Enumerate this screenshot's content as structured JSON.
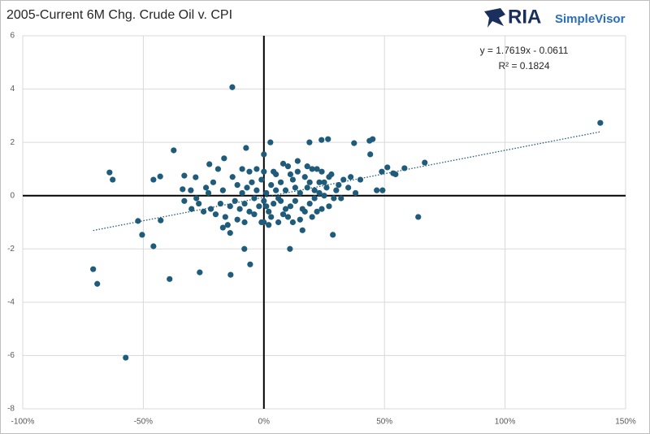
{
  "logo": {
    "brand": "RIA",
    "product": "SimpleVisor"
  },
  "chart_data": {
    "type": "scatter",
    "title": "2005-Current 6M Chg. Crude Oil v. CPI",
    "annotations": [
      "y = 1.7619x - 0.0611",
      "R² = 0.1824"
    ],
    "trendline": {
      "slope": 1.7619,
      "intercept": -0.0611,
      "style": "dotted"
    },
    "color": "#1f5b7a",
    "grid": true,
    "xlim": [
      -100,
      150
    ],
    "xticks": [
      {
        "value": -100,
        "label": "-100%"
      },
      {
        "value": -50,
        "label": "-50%"
      },
      {
        "value": 0,
        "label": "0%"
      },
      {
        "value": 50,
        "label": "50%"
      },
      {
        "value": 100,
        "label": "100%"
      },
      {
        "value": 150,
        "label": "150%"
      }
    ],
    "ylim": [
      -8,
      6
    ],
    "yticks": [
      -8,
      -6,
      -4,
      -2,
      0,
      2,
      4,
      6
    ],
    "x": [
      139.5,
      -13.1,
      -57.3,
      -70.8,
      -69.1,
      -39.1,
      -26.6,
      -13.8,
      -5.7,
      -8.1,
      10.8,
      -50.5,
      -45.8,
      -52.2,
      -42.8,
      -64,
      -62.7,
      -37.4,
      -45.8,
      -43,
      64,
      66.7,
      58.3,
      53.6,
      54.6,
      48.9,
      51.2,
      46.8,
      49.2,
      45.1,
      43.8,
      37.4,
      44.1,
      28.6,
      26.6,
      23.9,
      2.7,
      -7.4,
      -16.5,
      0,
      18.9,
      -22.6,
      -33,
      -33.7,
      -30.3,
      -28.3,
      -25,
      -22,
      -20,
      -18,
      -16,
      -15,
      -14,
      -12,
      -11,
      -10,
      -9,
      -8,
      -7,
      -6,
      -5,
      -4,
      -3,
      -2,
      -1,
      0,
      1,
      2,
      3,
      4,
      5,
      6,
      7,
      8,
      9,
      10,
      11,
      12,
      13,
      14,
      15,
      16,
      17,
      18,
      19,
      20,
      21,
      22,
      23,
      24,
      25,
      26,
      27,
      28,
      30,
      32,
      33,
      35,
      36,
      38,
      40,
      -27,
      -24,
      -21,
      -19,
      -17,
      -13,
      -11,
      -9,
      -6,
      -3,
      -1,
      2,
      4,
      6,
      8,
      10,
      12,
      14,
      16,
      18,
      20,
      22,
      24,
      -14,
      -17,
      -23,
      -28,
      -30,
      -33,
      -8,
      -4,
      0,
      0,
      1,
      3,
      5,
      7,
      9,
      11,
      13,
      15,
      17,
      19,
      21,
      23,
      25,
      27,
      29,
      31
    ],
    "values": [
      2.73,
      4.07,
      -6.08,
      -2.76,
      -3.31,
      -3.13,
      -2.88,
      -2.97,
      -2.58,
      -2.0,
      -2.0,
      -1.47,
      -1.9,
      -0.95,
      -0.93,
      0.87,
      0.6,
      1.7,
      0.6,
      0.72,
      -0.8,
      1.24,
      1.03,
      0.84,
      0.8,
      0.9,
      1.06,
      0.2,
      0.2,
      2.12,
      2.06,
      1.97,
      1.55,
      -1.47,
      2.12,
      2.09,
      2.0,
      1.79,
      1.4,
      1.55,
      2.0,
      1.18,
      0.75,
      0.24,
      0.2,
      0.69,
      -0.6,
      -0.5,
      -0.7,
      -0.3,
      -0.8,
      -1.1,
      -0.4,
      -0.2,
      -0.9,
      -0.5,
      0.1,
      -0.3,
      0.3,
      -0.6,
      0.5,
      -0.1,
      0.2,
      -0.4,
      0.6,
      -0.2,
      0.1,
      -0.6,
      0.4,
      -0.3,
      0.8,
      -0.1,
      0.5,
      -0.7,
      0.2,
      1.1,
      -0.4,
      0.6,
      -0.2,
      0.9,
      0.1,
      -0.5,
      0.7,
      0.3,
      -0.3,
      1.0,
      0.2,
      -0.6,
      0.5,
      0.9,
      0.0,
      0.3,
      -0.4,
      0.8,
      0.2,
      -0.1,
      0.6,
      0.3,
      0.7,
      0.1,
      0.6,
      -0.3,
      0.3,
      0.5,
      1.0,
      0.2,
      0.7,
      0.4,
      1.0,
      0.9,
      1.0,
      -1.0,
      -1.1,
      0.9,
      -1.0,
      1.2,
      -0.8,
      -1.0,
      1.3,
      -1.3,
      1.1,
      -0.8,
      1.0,
      -0.5,
      -1.4,
      -1.2,
      0.1,
      -0.1,
      -0.5,
      -0.2,
      -1.0,
      -0.7,
      0.9,
      -1.0,
      -0.4,
      -0.8,
      0.2,
      -0.2,
      -0.5,
      0.8,
      0.3,
      -0.9,
      -0.6,
      0.5,
      -0.1,
      0.1,
      0.5,
      0.7,
      -0.1,
      0.4
    ]
  }
}
